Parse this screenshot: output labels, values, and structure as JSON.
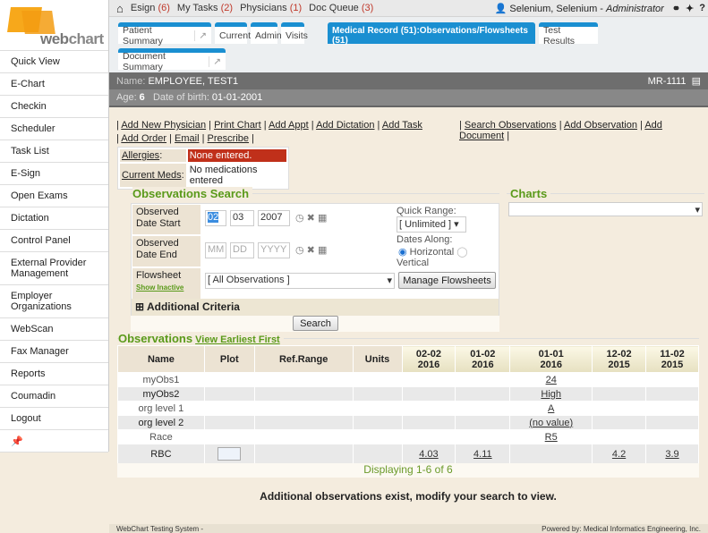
{
  "logo": {
    "text": "webchart"
  },
  "sidebar": {
    "items": [
      "Quick View",
      "E-Chart",
      "Checkin",
      "Scheduler",
      "Task List",
      "E-Sign",
      "Open Exams",
      "Dictation",
      "Control Panel",
      "External Provider Management",
      "Employer Organizations",
      "WebScan",
      "Fax Manager",
      "Reports",
      "Coumadin",
      "Logout"
    ]
  },
  "topbar": {
    "esign": "Esign",
    "esign_count": "(6)",
    "tasks": "My Tasks",
    "tasks_count": "(2)",
    "physicians": "Physicians",
    "physicians_count": "(1)",
    "docqueue": "Doc Queue",
    "docqueue_count": "(3)",
    "user": "Selenium, Selenium - ",
    "role": "Administrator"
  },
  "tabs": [
    "Patient Summary",
    "Current",
    "Admin",
    "Visits",
    "Medical Record (51):Observations/Flowsheets (51)",
    "Test Results",
    "Document Summary"
  ],
  "patient": {
    "name_label": "Name:",
    "name": "EMPLOYEE, TEST1",
    "mr": "MR-1111",
    "age_label": "Age:",
    "age": "6",
    "dob_label": "Date of birth:",
    "dob": "01-01-2001"
  },
  "actions": {
    "left": [
      "Add New Physician",
      "Print Chart",
      "Add Appt",
      "Add Dictation",
      "Add Task"
    ],
    "right": [
      "Search Observations",
      "Add Observation",
      "Add Document"
    ],
    "row2": [
      "Add Order",
      "Email",
      "Prescribe"
    ]
  },
  "allergies": {
    "label": "Allergies",
    "value": "None entered.",
    "meds_label": "Current Meds",
    "meds_value": "No medications entered"
  },
  "search": {
    "title": "Observations Search",
    "start_label": "Observed Date Start",
    "start_mm": "02",
    "start_dd": "03",
    "start_yyyy": "2007",
    "end_label": "Observed Date End",
    "end_mm": "MM",
    "end_dd": "DD",
    "end_yyyy": "YYYY",
    "quick_range_label": "Quick Range:",
    "quick_range": "[ Unlimited ]",
    "dates_along_label": "Dates Along:",
    "horizontal": "Horizontal",
    "vertical": "Vertical",
    "dates_along_selected": "Horizontal",
    "flowsheet_label": "Flowsheet",
    "show_inactive": "Show Inactive",
    "flowsheet_value": "[ All Observations ]",
    "manage_btn": "Manage Flowsheets",
    "additional": "Additional Criteria",
    "search_btn": "Search"
  },
  "charts": {
    "title": "Charts",
    "value": ""
  },
  "observations": {
    "title": "Observations",
    "view_link": "View Earliest First",
    "headers": [
      "Name",
      "Plot",
      "Ref.Range",
      "Units"
    ],
    "dates": [
      [
        "02-02",
        "2016"
      ],
      [
        "01-02",
        "2016"
      ],
      [
        "01-01",
        "2016"
      ],
      [
        "12-02",
        "2015"
      ],
      [
        "11-02",
        "2015"
      ]
    ],
    "rows": [
      {
        "name": "myObs1",
        "values": [
          "",
          "",
          "24",
          "",
          ""
        ]
      },
      {
        "name": "myObs2",
        "values": [
          "",
          "",
          "High",
          "",
          ""
        ]
      },
      {
        "name": "org level 1",
        "values": [
          "",
          "",
          "A",
          "",
          ""
        ]
      },
      {
        "name": "org level 2",
        "values": [
          "",
          "",
          "(no value)",
          "",
          ""
        ]
      },
      {
        "name": "Race",
        "values": [
          "",
          "",
          "R5",
          "",
          ""
        ]
      },
      {
        "name": "RBC",
        "plot": true,
        "values": [
          "4.03",
          "4.11",
          "",
          "4.2",
          "3.9"
        ]
      }
    ],
    "displaying": "Displaying 1-6 of 6",
    "note": "Additional observations exist, modify your search to view."
  },
  "footer": {
    "left": "WebChart Testing System -",
    "right": "Powered by: Medical Informatics Engineering, Inc."
  },
  "colors": {
    "accent": "#1a8fd1",
    "green": "#5a9a1a",
    "alert": "#c0301a",
    "background": "#f4ecde"
  }
}
